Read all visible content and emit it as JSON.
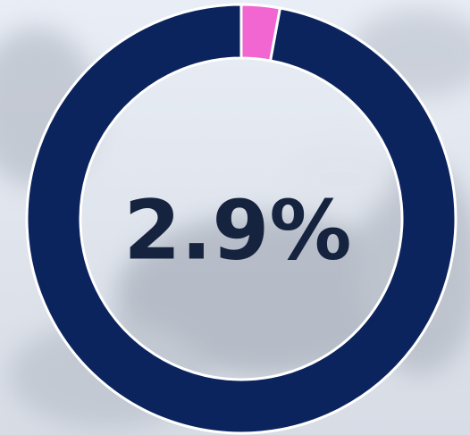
{
  "chart_data": {
    "type": "donut",
    "values": [
      2.9,
      97.1
    ],
    "value_labels": [
      "2.9%",
      null
    ],
    "colors": [
      "#f266d2",
      "#0c245e"
    ]
  }
}
